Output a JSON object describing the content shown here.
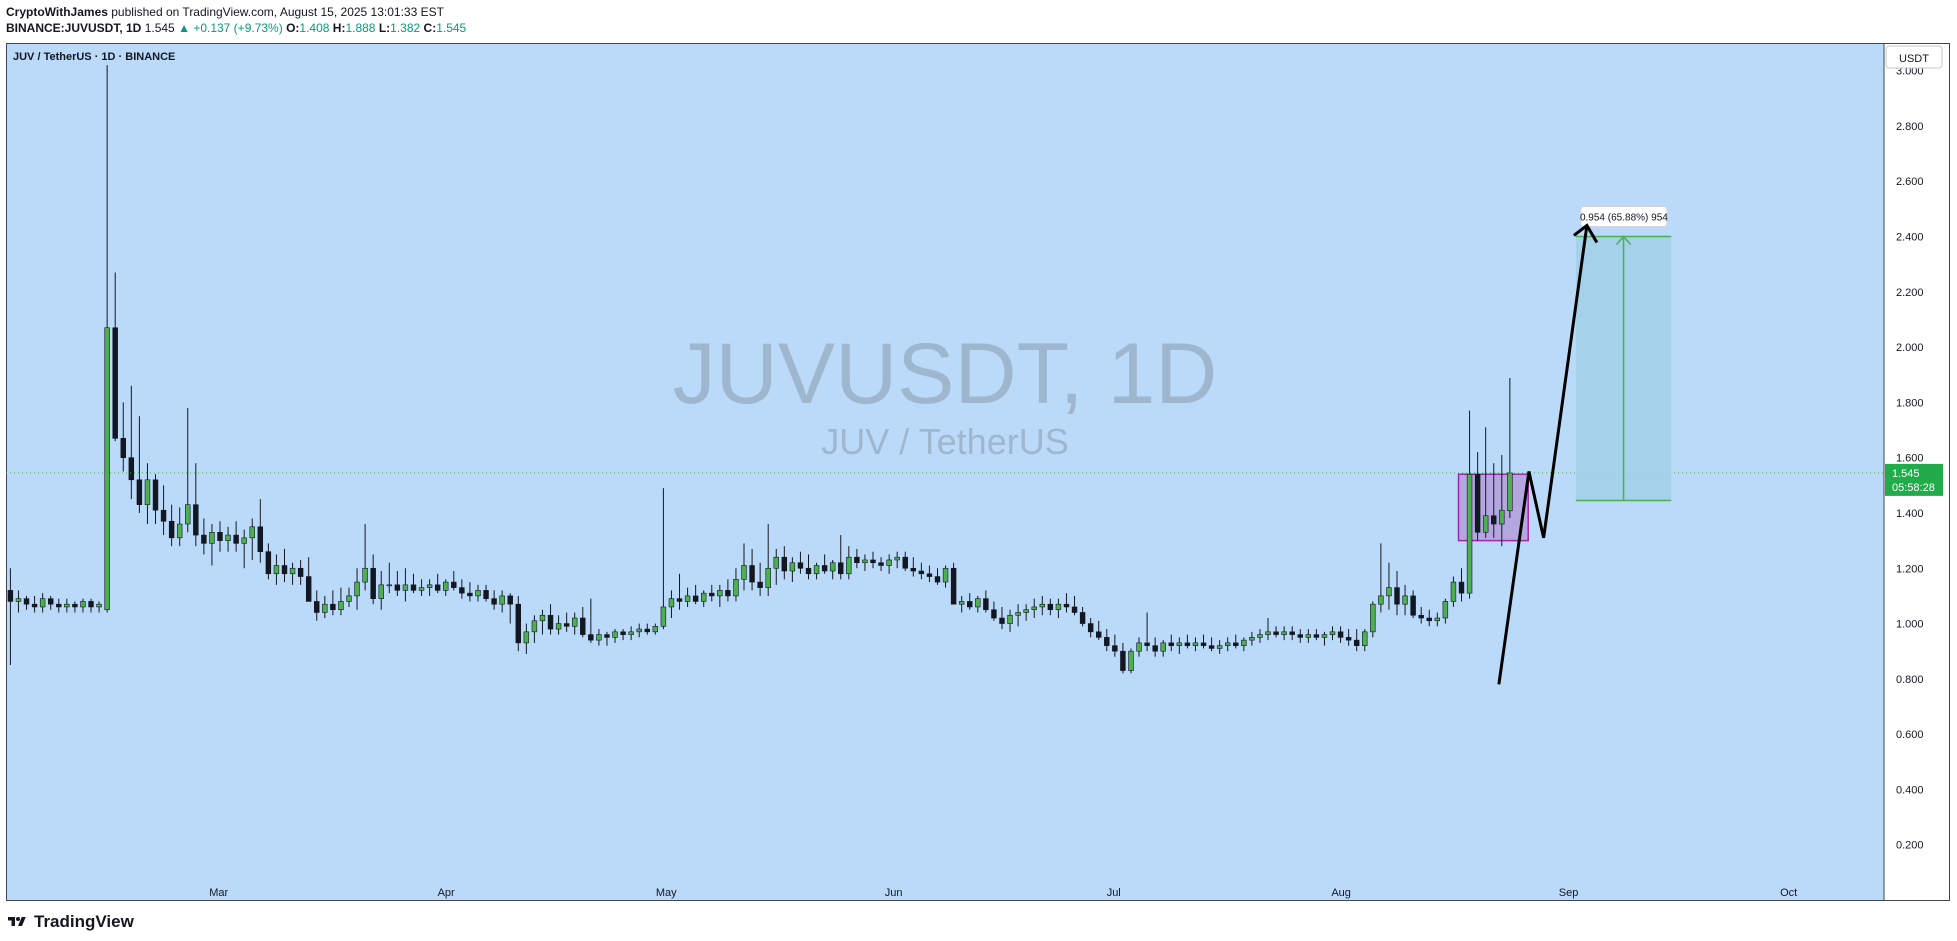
{
  "header": {
    "author": "CryptoWithJames",
    "published_text": " published on TradingView.com, August 15, 2025 13:01:33 EST",
    "symbol_line": "BINANCE:JUVUSDT, 1D",
    "last": "1.545",
    "change_arrow": "▲",
    "change": "+0.137 (+9.73%)",
    "o_label": "O:",
    "o_val": "1.408",
    "h_label": "H:",
    "h_val": "1.888",
    "l_label": "L:",
    "l_val": "1.382",
    "c_label": "C:",
    "c_val": "1.545"
  },
  "chart_data": {
    "type": "candlestick",
    "title": "JUV / TetherUS · 1D · BINANCE",
    "watermark_main": "JUVUSDT, 1D",
    "watermark_sub": "JUV / TetherUS",
    "currency_button": "USDT",
    "y_ticks": [
      "3.000",
      "2.800",
      "2.600",
      "2.400",
      "2.200",
      "2.000",
      "1.800",
      "1.600",
      "1.400",
      "1.200",
      "1.000",
      "0.800",
      "0.600",
      "0.400",
      "0.200"
    ],
    "y_tick_values": [
      3.0,
      2.8,
      2.6,
      2.4,
      2.2,
      2.0,
      1.8,
      1.6,
      1.4,
      1.2,
      1.0,
      0.8,
      0.6,
      0.4,
      0.2
    ],
    "ylim": [
      0.0,
      3.1
    ],
    "x_ticks": [
      "Mar",
      "Apr",
      "May",
      "Jun",
      "Jul",
      "Aug",
      "Sep",
      "Oct"
    ],
    "x_tick_days": [
      29,
      60,
      90,
      121,
      151,
      182,
      213,
      243
    ],
    "x_days_span": [
      0,
      256
    ],
    "price_label": "1.545",
    "countdown_label": "05:58:28",
    "last_price": 1.545,
    "measure_label": "0.954 (65.88%) 954",
    "measure_range": [
      1.445,
      2.4
    ],
    "consolidation_box": [
      1.3,
      1.54
    ],
    "colors": {
      "background": "#bbdafa",
      "up": "#4caf50",
      "down": "#131722",
      "box": "#9c27b0",
      "box_fill": "#b39ddb",
      "measure_fill": "#a3cfe8",
      "measure_line": "#4caf50",
      "arrow": "#000000",
      "price_tag": "#22ab4a",
      "watermark": "#9fb6cf"
    },
    "candles_ohlc": [
      [
        1.12,
        1.2,
        0.85,
        1.08
      ],
      [
        1.08,
        1.12,
        1.04,
        1.09
      ],
      [
        1.09,
        1.1,
        1.05,
        1.07
      ],
      [
        1.07,
        1.1,
        1.04,
        1.06
      ],
      [
        1.06,
        1.11,
        1.04,
        1.09
      ],
      [
        1.09,
        1.1,
        1.05,
        1.07
      ],
      [
        1.07,
        1.09,
        1.04,
        1.06
      ],
      [
        1.06,
        1.09,
        1.04,
        1.07
      ],
      [
        1.07,
        1.08,
        1.04,
        1.06
      ],
      [
        1.06,
        1.09,
        1.04,
        1.08
      ],
      [
        1.08,
        1.09,
        1.04,
        1.06
      ],
      [
        1.06,
        1.08,
        1.04,
        1.07
      ],
      [
        1.05,
        3.02,
        1.04,
        2.07
      ],
      [
        2.07,
        2.27,
        1.66,
        1.67
      ],
      [
        1.67,
        1.8,
        1.55,
        1.6
      ],
      [
        1.6,
        1.86,
        1.45,
        1.52
      ],
      [
        1.52,
        1.75,
        1.4,
        1.43
      ],
      [
        1.43,
        1.58,
        1.36,
        1.52
      ],
      [
        1.52,
        1.54,
        1.36,
        1.41
      ],
      [
        1.41,
        1.5,
        1.32,
        1.37
      ],
      [
        1.37,
        1.43,
        1.28,
        1.31
      ],
      [
        1.31,
        1.42,
        1.28,
        1.36
      ],
      [
        1.36,
        1.78,
        1.33,
        1.43
      ],
      [
        1.43,
        1.58,
        1.28,
        1.32
      ],
      [
        1.32,
        1.38,
        1.25,
        1.29
      ],
      [
        1.29,
        1.36,
        1.21,
        1.33
      ],
      [
        1.33,
        1.37,
        1.26,
        1.3
      ],
      [
        1.3,
        1.35,
        1.26,
        1.32
      ],
      [
        1.32,
        1.37,
        1.26,
        1.29
      ],
      [
        1.29,
        1.34,
        1.2,
        1.31
      ],
      [
        1.31,
        1.38,
        1.23,
        1.35
      ],
      [
        1.35,
        1.45,
        1.22,
        1.26
      ],
      [
        1.26,
        1.29,
        1.16,
        1.18
      ],
      [
        1.18,
        1.25,
        1.14,
        1.21
      ],
      [
        1.21,
        1.27,
        1.15,
        1.18
      ],
      [
        1.18,
        1.22,
        1.14,
        1.2
      ],
      [
        1.2,
        1.23,
        1.14,
        1.17
      ],
      [
        1.17,
        1.24,
        1.08,
        1.08
      ],
      [
        1.08,
        1.12,
        1.01,
        1.04
      ],
      [
        1.04,
        1.1,
        1.02,
        1.07
      ],
      [
        1.07,
        1.12,
        1.03,
        1.05
      ],
      [
        1.05,
        1.13,
        1.03,
        1.08
      ],
      [
        1.08,
        1.13,
        1.06,
        1.1
      ],
      [
        1.1,
        1.2,
        1.05,
        1.15
      ],
      [
        1.15,
        1.36,
        1.12,
        1.2
      ],
      [
        1.2,
        1.25,
        1.07,
        1.09
      ],
      [
        1.09,
        1.19,
        1.05,
        1.14
      ],
      [
        1.14,
        1.22,
        1.11,
        1.14
      ],
      [
        1.14,
        1.19,
        1.1,
        1.12
      ],
      [
        1.12,
        1.2,
        1.08,
        1.14
      ],
      [
        1.14,
        1.18,
        1.11,
        1.12
      ],
      [
        1.12,
        1.16,
        1.1,
        1.13
      ],
      [
        1.13,
        1.16,
        1.1,
        1.14
      ],
      [
        1.14,
        1.18,
        1.11,
        1.12
      ],
      [
        1.12,
        1.16,
        1.1,
        1.15
      ],
      [
        1.15,
        1.19,
        1.12,
        1.13
      ],
      [
        1.13,
        1.16,
        1.09,
        1.11
      ],
      [
        1.11,
        1.15,
        1.08,
        1.1
      ],
      [
        1.1,
        1.14,
        1.08,
        1.12
      ],
      [
        1.12,
        1.14,
        1.08,
        1.09
      ],
      [
        1.09,
        1.12,
        1.05,
        1.07
      ],
      [
        1.07,
        1.12,
        1.04,
        1.1
      ],
      [
        1.1,
        1.11,
        1.0,
        1.07
      ],
      [
        1.07,
        1.1,
        0.9,
        0.93
      ],
      [
        0.93,
        1.0,
        0.89,
        0.97
      ],
      [
        0.97,
        1.03,
        0.93,
        1.01
      ],
      [
        1.01,
        1.05,
        0.96,
        1.03
      ],
      [
        1.03,
        1.07,
        0.96,
        0.98
      ],
      [
        0.98,
        1.03,
        0.96,
        1.0
      ],
      [
        1.0,
        1.04,
        0.97,
        0.99
      ],
      [
        0.99,
        1.04,
        0.96,
        1.02
      ],
      [
        1.02,
        1.06,
        0.95,
        0.96
      ],
      [
        0.96,
        1.09,
        0.93,
        0.94
      ],
      [
        0.94,
        0.98,
        0.92,
        0.96
      ],
      [
        0.96,
        0.97,
        0.92,
        0.95
      ],
      [
        0.95,
        0.98,
        0.93,
        0.97
      ],
      [
        0.97,
        0.98,
        0.94,
        0.96
      ],
      [
        0.96,
        0.99,
        0.94,
        0.97
      ],
      [
        0.97,
        1.0,
        0.95,
        0.98
      ],
      [
        0.98,
        1.0,
        0.96,
        0.97
      ],
      [
        0.97,
        1.0,
        0.96,
        0.99
      ],
      [
        0.99,
        1.49,
        0.98,
        1.06
      ],
      [
        1.06,
        1.12,
        1.02,
        1.09
      ],
      [
        1.09,
        1.18,
        1.05,
        1.08
      ],
      [
        1.08,
        1.13,
        1.06,
        1.1
      ],
      [
        1.1,
        1.14,
        1.07,
        1.08
      ],
      [
        1.08,
        1.12,
        1.06,
        1.11
      ],
      [
        1.11,
        1.14,
        1.08,
        1.1
      ],
      [
        1.1,
        1.14,
        1.06,
        1.12
      ],
      [
        1.12,
        1.16,
        1.08,
        1.1
      ],
      [
        1.1,
        1.2,
        1.08,
        1.16
      ],
      [
        1.16,
        1.29,
        1.12,
        1.21
      ],
      [
        1.21,
        1.27,
        1.12,
        1.15
      ],
      [
        1.15,
        1.22,
        1.1,
        1.13
      ],
      [
        1.13,
        1.36,
        1.1,
        1.2
      ],
      [
        1.2,
        1.27,
        1.14,
        1.24
      ],
      [
        1.24,
        1.28,
        1.16,
        1.19
      ],
      [
        1.19,
        1.24,
        1.15,
        1.22
      ],
      [
        1.22,
        1.26,
        1.18,
        1.2
      ],
      [
        1.2,
        1.25,
        1.16,
        1.18
      ],
      [
        1.18,
        1.22,
        1.16,
        1.21
      ],
      [
        1.21,
        1.25,
        1.18,
        1.19
      ],
      [
        1.19,
        1.23,
        1.16,
        1.22
      ],
      [
        1.22,
        1.32,
        1.16,
        1.18
      ],
      [
        1.18,
        1.28,
        1.16,
        1.24
      ],
      [
        1.24,
        1.27,
        1.2,
        1.22
      ],
      [
        1.22,
        1.25,
        1.19,
        1.23
      ],
      [
        1.23,
        1.26,
        1.2,
        1.22
      ],
      [
        1.22,
        1.24,
        1.19,
        1.21
      ],
      [
        1.21,
        1.25,
        1.18,
        1.23
      ],
      [
        1.23,
        1.26,
        1.2,
        1.24
      ],
      [
        1.24,
        1.26,
        1.19,
        1.2
      ],
      [
        1.2,
        1.24,
        1.17,
        1.19
      ],
      [
        1.19,
        1.22,
        1.16,
        1.18
      ],
      [
        1.18,
        1.21,
        1.15,
        1.17
      ],
      [
        1.17,
        1.2,
        1.14,
        1.15
      ],
      [
        1.15,
        1.21,
        1.13,
        1.2
      ],
      [
        1.2,
        1.22,
        1.07,
        1.07
      ],
      [
        1.07,
        1.1,
        1.04,
        1.08
      ],
      [
        1.08,
        1.11,
        1.05,
        1.06
      ],
      [
        1.06,
        1.1,
        1.04,
        1.09
      ],
      [
        1.09,
        1.12,
        1.04,
        1.05
      ],
      [
        1.05,
        1.08,
        1.01,
        1.02
      ],
      [
        1.02,
        1.06,
        0.98,
        1.0
      ],
      [
        1.0,
        1.05,
        0.97,
        1.03
      ],
      [
        1.03,
        1.07,
        0.99,
        1.04
      ],
      [
        1.04,
        1.07,
        1.01,
        1.05
      ],
      [
        1.05,
        1.09,
        1.02,
        1.06
      ],
      [
        1.06,
        1.1,
        1.03,
        1.07
      ],
      [
        1.07,
        1.09,
        1.03,
        1.05
      ],
      [
        1.05,
        1.09,
        1.02,
        1.07
      ],
      [
        1.07,
        1.11,
        1.04,
        1.06
      ],
      [
        1.06,
        1.1,
        1.03,
        1.04
      ],
      [
        1.04,
        1.06,
        0.99,
        1.0
      ],
      [
        1.0,
        1.02,
        0.95,
        0.97
      ],
      [
        0.97,
        1.01,
        0.94,
        0.95
      ],
      [
        0.95,
        0.98,
        0.9,
        0.92
      ],
      [
        0.92,
        0.96,
        0.88,
        0.9
      ],
      [
        0.9,
        0.93,
        0.82,
        0.83
      ],
      [
        0.83,
        0.91,
        0.82,
        0.9
      ],
      [
        0.9,
        0.95,
        0.88,
        0.93
      ],
      [
        0.93,
        1.04,
        0.9,
        0.92
      ],
      [
        0.92,
        0.95,
        0.88,
        0.9
      ],
      [
        0.9,
        0.94,
        0.88,
        0.93
      ],
      [
        0.93,
        0.96,
        0.9,
        0.92
      ],
      [
        0.92,
        0.95,
        0.89,
        0.93
      ],
      [
        0.93,
        0.96,
        0.91,
        0.92
      ],
      [
        0.92,
        0.95,
        0.9,
        0.93
      ],
      [
        0.93,
        0.96,
        0.91,
        0.92
      ],
      [
        0.92,
        0.95,
        0.9,
        0.91
      ],
      [
        0.91,
        0.94,
        0.89,
        0.92
      ],
      [
        0.92,
        0.95,
        0.9,
        0.93
      ],
      [
        0.93,
        0.96,
        0.91,
        0.92
      ],
      [
        0.92,
        0.95,
        0.9,
        0.94
      ],
      [
        0.94,
        0.97,
        0.92,
        0.95
      ],
      [
        0.95,
        0.98,
        0.93,
        0.96
      ],
      [
        0.96,
        1.02,
        0.94,
        0.97
      ],
      [
        0.97,
        0.99,
        0.95,
        0.96
      ],
      [
        0.96,
        0.99,
        0.94,
        0.97
      ],
      [
        0.97,
        0.99,
        0.94,
        0.96
      ],
      [
        0.96,
        0.98,
        0.93,
        0.95
      ],
      [
        0.95,
        0.98,
        0.93,
        0.96
      ],
      [
        0.96,
        0.98,
        0.94,
        0.95
      ],
      [
        0.95,
        0.97,
        0.92,
        0.96
      ],
      [
        0.96,
        0.99,
        0.94,
        0.97
      ],
      [
        0.97,
        0.99,
        0.93,
        0.95
      ],
      [
        0.95,
        0.98,
        0.92,
        0.94
      ],
      [
        0.94,
        0.98,
        0.9,
        0.92
      ],
      [
        0.92,
        0.98,
        0.9,
        0.97
      ],
      [
        0.97,
        1.08,
        0.95,
        1.07
      ],
      [
        1.07,
        1.29,
        1.04,
        1.1
      ],
      [
        1.1,
        1.22,
        1.05,
        1.13
      ],
      [
        1.13,
        1.19,
        1.03,
        1.07
      ],
      [
        1.07,
        1.14,
        1.03,
        1.1
      ],
      [
        1.1,
        1.12,
        1.02,
        1.03
      ],
      [
        1.03,
        1.06,
        1.0,
        1.02
      ],
      [
        1.02,
        1.05,
        0.99,
        1.01
      ],
      [
        1.01,
        1.04,
        0.99,
        1.02
      ],
      [
        1.02,
        1.09,
        1.0,
        1.08
      ],
      [
        1.08,
        1.17,
        1.06,
        1.15
      ],
      [
        1.15,
        1.2,
        1.08,
        1.11
      ],
      [
        1.11,
        1.77,
        1.09,
        1.54
      ],
      [
        1.54,
        1.62,
        1.3,
        1.33
      ],
      [
        1.33,
        1.71,
        1.31,
        1.39
      ],
      [
        1.39,
        1.58,
        1.31,
        1.36
      ],
      [
        1.36,
        1.61,
        1.28,
        1.41
      ],
      [
        1.408,
        1.888,
        1.382,
        1.545
      ]
    ]
  }
}
